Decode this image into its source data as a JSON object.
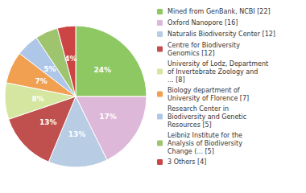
{
  "chart_data": {
    "type": "pie",
    "categories": [
      "Mined from GenBank, NCBI [22]",
      "Oxford Nanopore [16]",
      "Naturalis Biodiversity Center [12]",
      "Centre for Biodiversity\nGenomics [12]",
      "University of Lodz, Department\nof Invertebrate Zoology and\n... [8]",
      "Biology department of\nUniversity of Florence [7]",
      "Research Center in\nBiodiversity and Genetic\nResources [5]",
      "Leibniz Institute for the\nAnalysis of Biodiversity\nChange (... [5]",
      "3 Others [4]"
    ],
    "values": [
      24,
      17,
      13,
      13,
      8,
      7,
      5,
      5,
      4
    ],
    "value_labels": [
      "24%",
      "17%",
      "13%",
      "13%",
      "8%",
      "7%",
      "5%",
      "5%",
      "4%"
    ],
    "colors": [
      "#8dc863",
      "#ddb8d8",
      "#b8cce4",
      "#c0504d",
      "#d4e6a0",
      "#f0a050",
      "#aec6e8",
      "#9fc46e",
      "#cc4444"
    ],
    "data_labels": true,
    "legend": "right"
  }
}
